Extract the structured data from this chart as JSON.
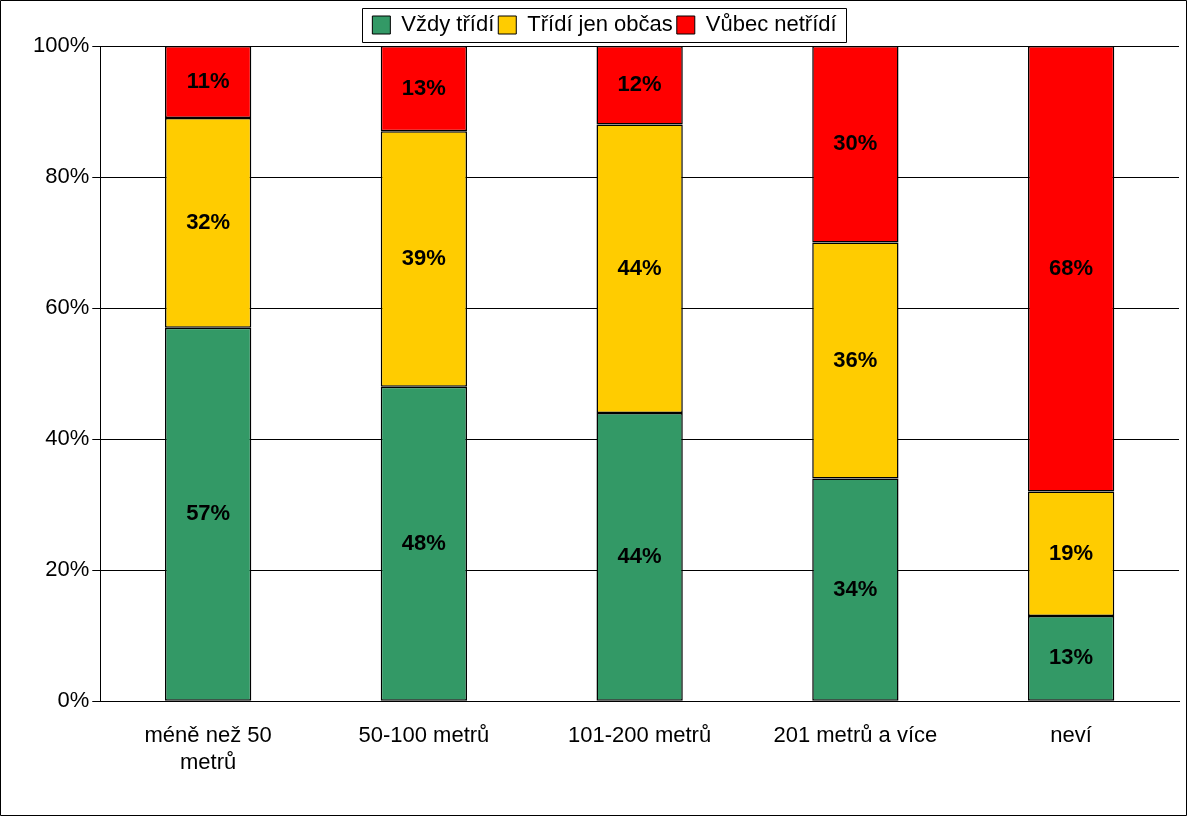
{
  "chart_data": {
    "type": "bar",
    "stacked": true,
    "categories": [
      "méně než 50 metrů",
      "50-100 metrů",
      "101-200 metrů",
      "201 metrů a více",
      "neví"
    ],
    "series": [
      {
        "name": "Vždy třídí",
        "color": "#339966",
        "values": [
          57,
          48,
          44,
          34,
          13
        ],
        "value_labels": [
          "57%",
          "48%",
          "44%",
          "34%",
          "13%"
        ]
      },
      {
        "name": "Třídí jen občas",
        "color": "#ffcc00",
        "values": [
          32,
          39,
          44,
          36,
          19
        ],
        "value_labels": [
          "32%",
          "39%",
          "44%",
          "36%",
          "19%"
        ]
      },
      {
        "name": "Vůbec netřídí",
        "color": "#ff0000",
        "values": [
          11,
          13,
          12,
          30,
          68
        ],
        "value_labels": [
          "11%",
          "13%",
          "12%",
          "30%",
          "68%"
        ]
      }
    ],
    "ylim": [
      0,
      100
    ],
    "yticks": [
      {
        "value": 0,
        "label": "0%"
      },
      {
        "value": 20,
        "label": "20%"
      },
      {
        "value": 40,
        "label": "40%"
      },
      {
        "value": 60,
        "label": "60%"
      },
      {
        "value": 80,
        "label": "80%"
      },
      {
        "value": 100,
        "label": "100%"
      }
    ],
    "grid": "y",
    "legend": "top"
  }
}
